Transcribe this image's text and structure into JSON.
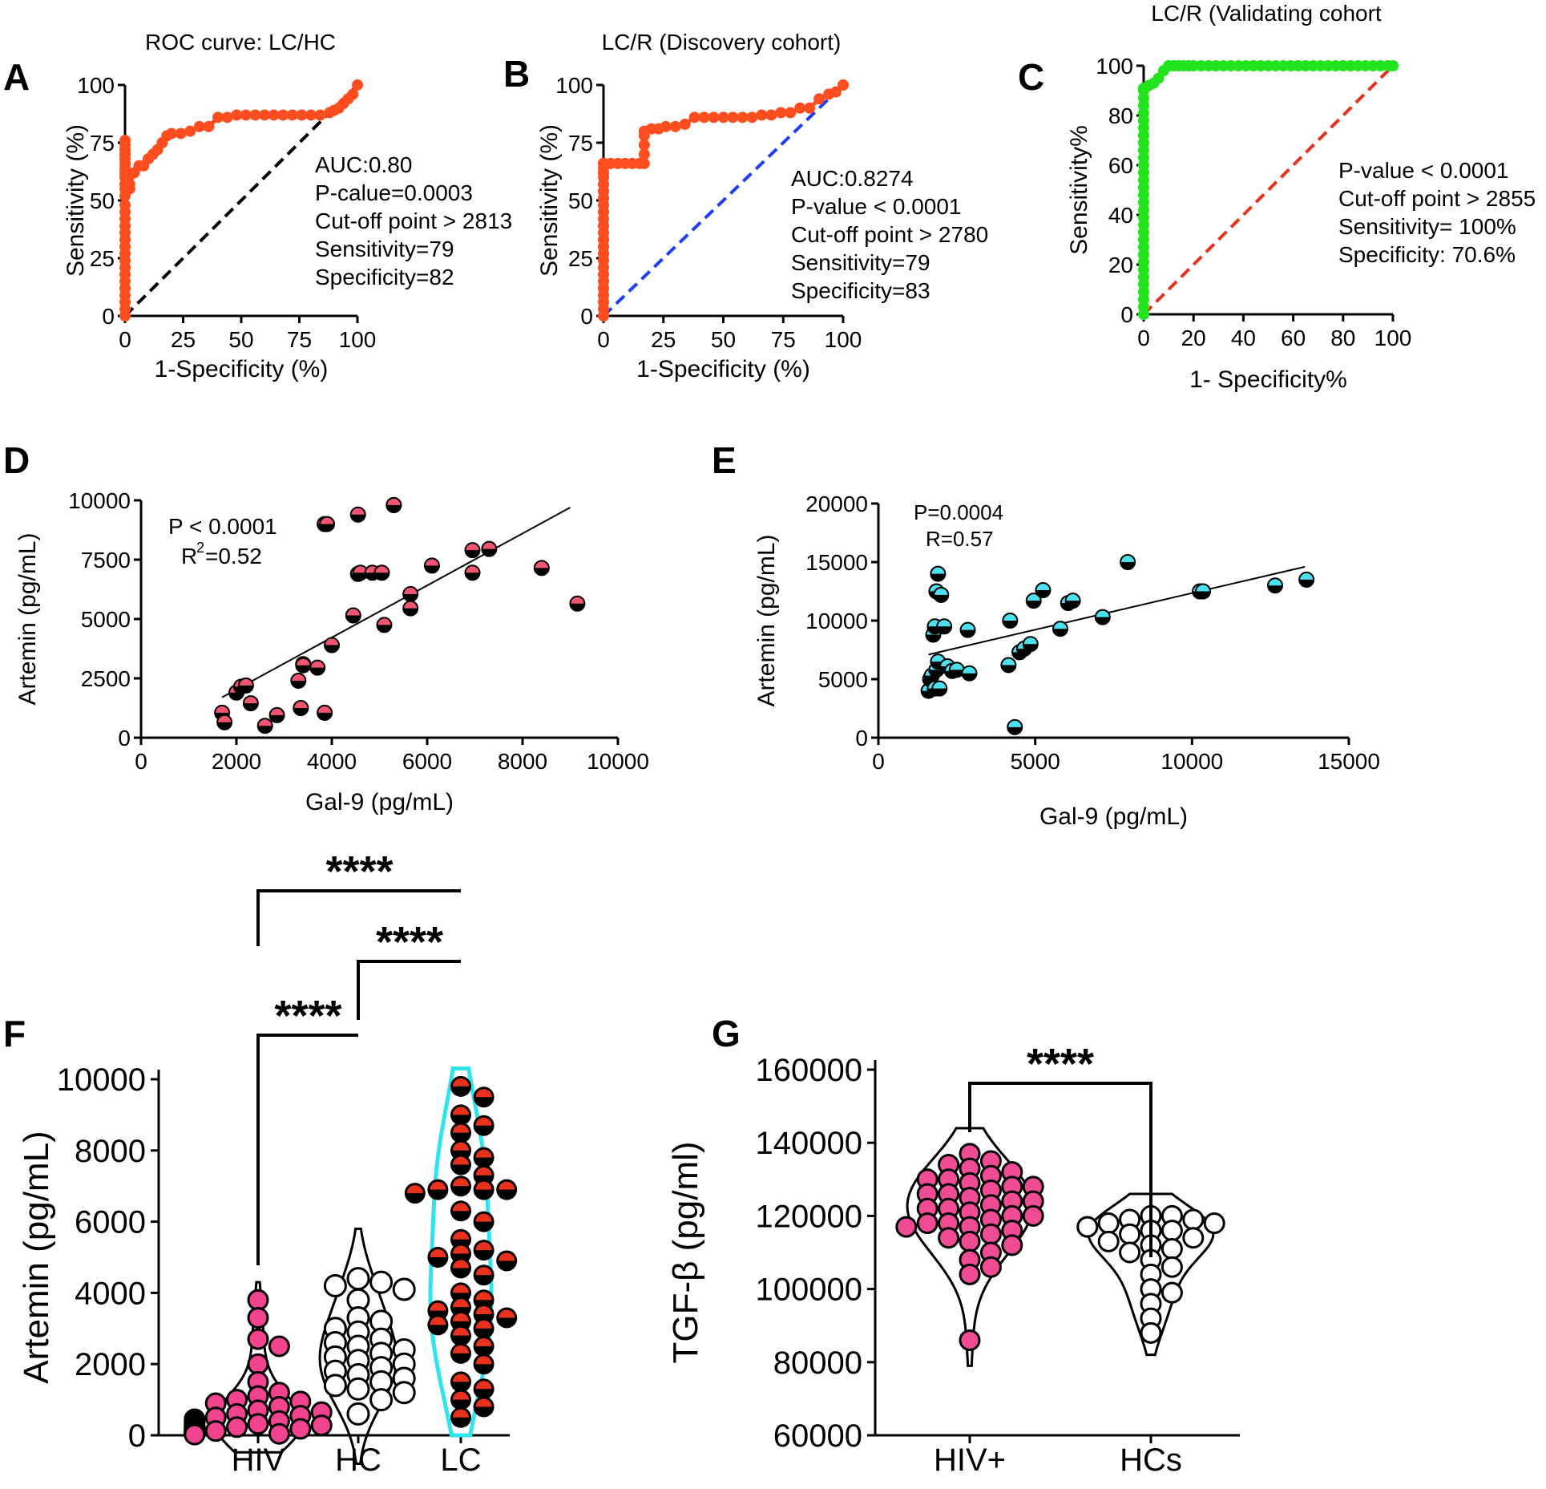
{
  "colors": {
    "roc_red": "#ff4d1f",
    "roc_green": "#22e41d",
    "diag_black": "#000000",
    "diag_blue": "#1f3ff2",
    "diag_red": "#e8321e",
    "dot_pink": "#f25572",
    "dot_cyan": "#4de0ee",
    "hiv_pink": "#f2438f",
    "lc_red": "#e8321e",
    "violin_cyan": "#2ee4ee",
    "tgf_pink": "#f04b95"
  },
  "chart_data": [
    {
      "id": "A",
      "panel_label": "A",
      "type": "line",
      "title": "ROC curve: LC/HC",
      "xlabel": "1-Specificity (%)",
      "ylabel": "Sensitivity (%)",
      "xlim": [
        0,
        100
      ],
      "ylim": [
        0,
        100
      ],
      "xticks": [
        "0",
        "25",
        "50",
        "75",
        "100"
      ],
      "yticks": [
        "0",
        "25",
        "50",
        "75",
        "100"
      ],
      "series": [
        {
          "name": "ROC",
          "color_key": "roc_red",
          "x": [
            0,
            0,
            0,
            0,
            0,
            0,
            0,
            0,
            0,
            0,
            0,
            0,
            0,
            0,
            0,
            0,
            0,
            0,
            0,
            0,
            0,
            0,
            0,
            0,
            0,
            0,
            0,
            0,
            0,
            2,
            2,
            4,
            6,
            8,
            10,
            12,
            14,
            16,
            18,
            20,
            24,
            28,
            32,
            36,
            40,
            44,
            48,
            52,
            56,
            60,
            64,
            68,
            72,
            76,
            80,
            84,
            88,
            90,
            92,
            94,
            96,
            98,
            100
          ],
          "y": [
            0,
            3,
            6,
            9,
            12,
            15,
            18,
            21,
            24,
            27,
            30,
            33,
            36,
            39,
            42,
            45,
            48,
            52,
            55,
            57,
            60,
            62,
            64,
            66,
            68,
            70,
            72,
            74,
            76,
            55,
            57,
            62,
            65,
            65,
            68,
            70,
            72,
            75,
            78,
            79,
            79,
            80,
            82,
            82,
            86,
            86,
            87,
            87,
            87,
            87,
            87,
            87,
            87,
            87,
            87,
            87,
            88,
            89,
            90,
            92,
            94,
            96,
            100
          ]
        },
        {
          "name": "reference",
          "style": "dashed",
          "color_key": "diag_black",
          "x": [
            0,
            100
          ],
          "y": [
            0,
            100
          ]
        }
      ],
      "annotations": [
        "AUC:0.80",
        "P-calue=0.0003",
        "Cut-off point > 2813",
        "Sensitivity=79",
        "Specificity=82"
      ]
    },
    {
      "id": "B",
      "panel_label": "B",
      "type": "line",
      "title": "LC/R (Discovery cohort)",
      "xlabel": "1-Specificity (%)",
      "ylabel": "Sensitivity (%)",
      "xlim": [
        0,
        100
      ],
      "ylim": [
        0,
        100
      ],
      "xticks": [
        "0",
        "25",
        "50",
        "75",
        "100"
      ],
      "yticks": [
        "0",
        "25",
        "50",
        "75",
        "100"
      ],
      "series": [
        {
          "name": "ROC",
          "color_key": "roc_red",
          "x": [
            0,
            0,
            0,
            0,
            0,
            0,
            0,
            0,
            0,
            0,
            0,
            0,
            0,
            0,
            0,
            0,
            0,
            0,
            0,
            0,
            0,
            0,
            0,
            0,
            0,
            0,
            0,
            0,
            0,
            3,
            6,
            9,
            12,
            15,
            17,
            17,
            17,
            17,
            17,
            20,
            23,
            26,
            30,
            34,
            38,
            42,
            46,
            50,
            54,
            58,
            62,
            66,
            70,
            74,
            78,
            82,
            86,
            90,
            94,
            97,
            100
          ],
          "y": [
            0,
            3,
            6,
            9,
            12,
            15,
            18,
            21,
            24,
            27,
            30,
            33,
            36,
            39,
            42,
            45,
            48,
            51,
            54,
            57,
            60,
            62,
            64,
            66,
            66,
            66,
            66,
            66,
            66,
            66,
            66,
            66,
            66,
            66,
            66,
            70,
            74,
            78,
            80,
            81,
            81,
            82,
            82,
            83,
            86,
            86,
            86,
            86,
            86,
            86,
            86,
            87,
            87,
            88,
            88,
            90,
            90,
            94,
            96,
            97,
            100
          ]
        },
        {
          "name": "reference",
          "style": "dashed",
          "color_key": "diag_blue",
          "x": [
            0,
            100
          ],
          "y": [
            0,
            100
          ]
        }
      ],
      "annotations": [
        "AUC:0.8274",
        "P-value < 0.0001",
        "Cut-off point > 2780",
        "Sensitivity=79",
        "Specificity=83"
      ]
    },
    {
      "id": "C",
      "panel_label": "C",
      "type": "line",
      "title": "LC/R (Validating cohort",
      "xlabel": "1- Specificity%",
      "ylabel": "Sensitivity%",
      "xlim": [
        0,
        100
      ],
      "ylim": [
        0,
        100
      ],
      "xticks": [
        "0",
        "20",
        "40",
        "60",
        "80",
        "100"
      ],
      "yticks": [
        "0",
        "20",
        "40",
        "60",
        "80",
        "100"
      ],
      "series": [
        {
          "name": "ROC",
          "color_key": "roc_green",
          "x": [
            0,
            0,
            0,
            0,
            0,
            0,
            0,
            0,
            0,
            0,
            0,
            0,
            0,
            0,
            0,
            0,
            0,
            0,
            0,
            0,
            0,
            0,
            0,
            0,
            0,
            0,
            0,
            0,
            0,
            0,
            0,
            0,
            2,
            4,
            6,
            8,
            10,
            12,
            14,
            16,
            18,
            20,
            23,
            26,
            29,
            32,
            35,
            38,
            41,
            44,
            47,
            50,
            53,
            56,
            59,
            62,
            65,
            68,
            71,
            74,
            77,
            80,
            83,
            86,
            89,
            92,
            95,
            98,
            100
          ],
          "y": [
            0,
            3,
            6,
            9,
            12,
            15,
            18,
            21,
            24,
            27,
            30,
            33,
            36,
            39,
            42,
            45,
            48,
            51,
            54,
            57,
            60,
            63,
            66,
            69,
            72,
            75,
            78,
            81,
            84,
            87,
            90,
            91,
            92,
            93,
            95,
            98,
            100,
            100,
            100,
            100,
            100,
            100,
            100,
            100,
            100,
            100,
            100,
            100,
            100,
            100,
            100,
            100,
            100,
            100,
            100,
            100,
            100,
            100,
            100,
            100,
            100,
            100,
            100,
            100,
            100,
            100,
            100,
            100,
            100
          ]
        },
        {
          "name": "reference",
          "style": "dashed",
          "color_key": "diag_red",
          "x": [
            0,
            100
          ],
          "y": [
            0,
            100
          ]
        }
      ],
      "annotations": [
        "P-value < 0.0001",
        "Cut-off point > 2855",
        "Sensitivity= 100%",
        "Specificity: 70.6%"
      ]
    },
    {
      "id": "D",
      "panel_label": "D",
      "type": "scatter",
      "xlabel": "Gal-9 (pg/mL)",
      "ylabel": "Artemin (pg/mL)",
      "xlim": [
        0,
        10000
      ],
      "ylim": [
        0,
        10000
      ],
      "xticks": [
        "0",
        "2000",
        "4000",
        "6000",
        "8000",
        "10000"
      ],
      "yticks": [
        "0",
        "2500",
        "5000",
        "7500",
        "10000"
      ],
      "series": [
        {
          "name": "points",
          "color_key": "dot_pink",
          "x": [
            1700,
            1750,
            2000,
            2100,
            2200,
            2300,
            2600,
            2850,
            3300,
            3350,
            3400,
            3400,
            3700,
            3850,
            3850,
            4000,
            4450,
            4550,
            4600,
            4850,
            5050,
            5100,
            5300,
            5650,
            5650,
            6100,
            6950,
            6950,
            7300,
            8400,
            9150,
            3900,
            4550,
            5300
          ],
          "y": [
            1050,
            650,
            1900,
            2150,
            2200,
            1450,
            500,
            950,
            2400,
            1250,
            3100,
            3050,
            2950,
            1050,
            9000,
            3900,
            5150,
            6900,
            6950,
            6950,
            6950,
            4750,
            9800,
            6050,
            5450,
            7250,
            7900,
            6950,
            7950,
            7150,
            5650,
            9000,
            9400,
            9800
          ]
        },
        {
          "name": "fit",
          "style": "line",
          "x": [
            1700,
            9000
          ],
          "y": [
            1700,
            9700
          ]
        }
      ],
      "annotations": [
        "P < 0.0001",
        "R",
        "2",
        "=0.52"
      ]
    },
    {
      "id": "E",
      "panel_label": "E",
      "type": "scatter",
      "xlabel": "Gal-9 (pg/mL)",
      "ylabel": "Artemin (pg/mL)",
      "xlim": [
        0,
        15000
      ],
      "ylim": [
        0,
        20000
      ],
      "xticks": [
        "0",
        "5000",
        "10000",
        "15000"
      ],
      "yticks": [
        "0",
        "5000",
        "10000",
        "15000",
        "20000"
      ],
      "series": [
        {
          "name": "points",
          "color_key": "dot_cyan",
          "x": [
            1600,
            1650,
            1700,
            1750,
            1800,
            1800,
            1850,
            1850,
            1900,
            1900,
            1950,
            2000,
            2100,
            2200,
            2350,
            2500,
            2850,
            2900,
            4150,
            4200,
            4350,
            4500,
            4650,
            4850,
            4950,
            5250,
            5800,
            6050,
            6200,
            7150,
            7950,
            10250,
            10350,
            12650,
            13650
          ],
          "y": [
            4000,
            5000,
            5300,
            8800,
            4200,
            9500,
            12500,
            5800,
            14000,
            6500,
            4200,
            12200,
            9500,
            6100,
            5700,
            5800,
            9200,
            5500,
            6200,
            10000,
            900,
            7300,
            7600,
            8000,
            11700,
            12600,
            9300,
            11500,
            11700,
            10300,
            15000,
            12500,
            12500,
            13000,
            13500
          ]
        },
        {
          "name": "fit",
          "style": "line",
          "x": [
            1600,
            13600
          ],
          "y": [
            7100,
            14600
          ]
        }
      ],
      "annotations": [
        "P=0.0004",
        "R=0.57"
      ]
    },
    {
      "id": "F",
      "panel_label": "F",
      "type": "scatter",
      "ylabel": "Artemin (pg/mL)",
      "ylim": [
        0,
        10000
      ],
      "yticks": [
        "0",
        "2000",
        "4000",
        "6000",
        "8000",
        "10000"
      ],
      "categories": [
        "HIV",
        "HC",
        "LC"
      ],
      "series": [
        {
          "name": "HIV",
          "color_key": "hiv_pink",
          "values": [
            3800,
            3300,
            2700,
            2500,
            2000,
            1500,
            1200,
            1100,
            1000,
            950,
            900,
            800,
            700,
            650,
            600,
            550,
            500,
            450,
            400,
            380,
            350,
            320,
            300,
            280,
            250,
            230,
            200,
            200,
            180,
            150,
            150,
            120,
            100,
            100,
            80,
            60,
            50,
            40,
            30,
            20
          ]
        },
        {
          "name": "HC",
          "color_key": "hc_white",
          "values": [
            4400,
            4300,
            4200,
            4100,
            3800,
            3300,
            3200,
            3000,
            2900,
            2700,
            2600,
            2500,
            2400,
            2300,
            2200,
            2100,
            2000,
            1900,
            1800,
            1700,
            1600,
            1500,
            1400,
            1300,
            1200,
            1000,
            600
          ]
        },
        {
          "name": "LC",
          "color_key": "lc_red",
          "values": [
            9800,
            9500,
            9000,
            8700,
            8500,
            8000,
            7800,
            7600,
            7300,
            7000,
            6900,
            6900,
            6900,
            6800,
            6300,
            6000,
            5500,
            5200,
            5100,
            5000,
            4900,
            4700,
            4500,
            4000,
            3800,
            3600,
            3500,
            3400,
            3300,
            3200,
            3100,
            3000,
            2800,
            2500,
            2300,
            2000,
            1500,
            1300,
            1000,
            800,
            500
          ]
        }
      ],
      "significance": [
        {
          "pair": [
            "HIV",
            "LC"
          ],
          "label": "****"
        },
        {
          "pair": [
            "HC",
            "LC"
          ],
          "label": "****"
        },
        {
          "pair": [
            "HIV",
            "HC"
          ],
          "label": "****"
        }
      ]
    },
    {
      "id": "G",
      "panel_label": "G",
      "type": "scatter",
      "ylabel": "TGF-β (pg/ml)",
      "ylim": [
        60000,
        160000
      ],
      "yticks": [
        "60000",
        "80000",
        "100000",
        "120000",
        "140000",
        "160000"
      ],
      "categories": [
        "HIV+",
        "HCs"
      ],
      "series": [
        {
          "name": "HIV+",
          "color_key": "tgf_pink",
          "values": [
            137000,
            135000,
            134000,
            133000,
            132000,
            131000,
            130000,
            130000,
            129000,
            128000,
            128000,
            127000,
            126000,
            126000,
            125000,
            124000,
            124000,
            123000,
            122000,
            122000,
            121000,
            120000,
            120000,
            119000,
            118000,
            118000,
            117000,
            117000,
            116000,
            115000,
            114000,
            113000,
            112000,
            110000,
            108000,
            106000,
            104000,
            86000
          ]
        },
        {
          "name": "HCs",
          "color_key": "hc_white",
          "values": [
            120000,
            120000,
            119000,
            119000,
            118000,
            118000,
            117000,
            117000,
            116000,
            116000,
            115000,
            114000,
            113000,
            112000,
            111000,
            110000,
            108000,
            106000,
            104000,
            100000,
            99000,
            96000,
            92000,
            88000
          ]
        }
      ],
      "significance": [
        {
          "pair": [
            "HIV+",
            "HCs"
          ],
          "label": "****"
        }
      ]
    }
  ]
}
